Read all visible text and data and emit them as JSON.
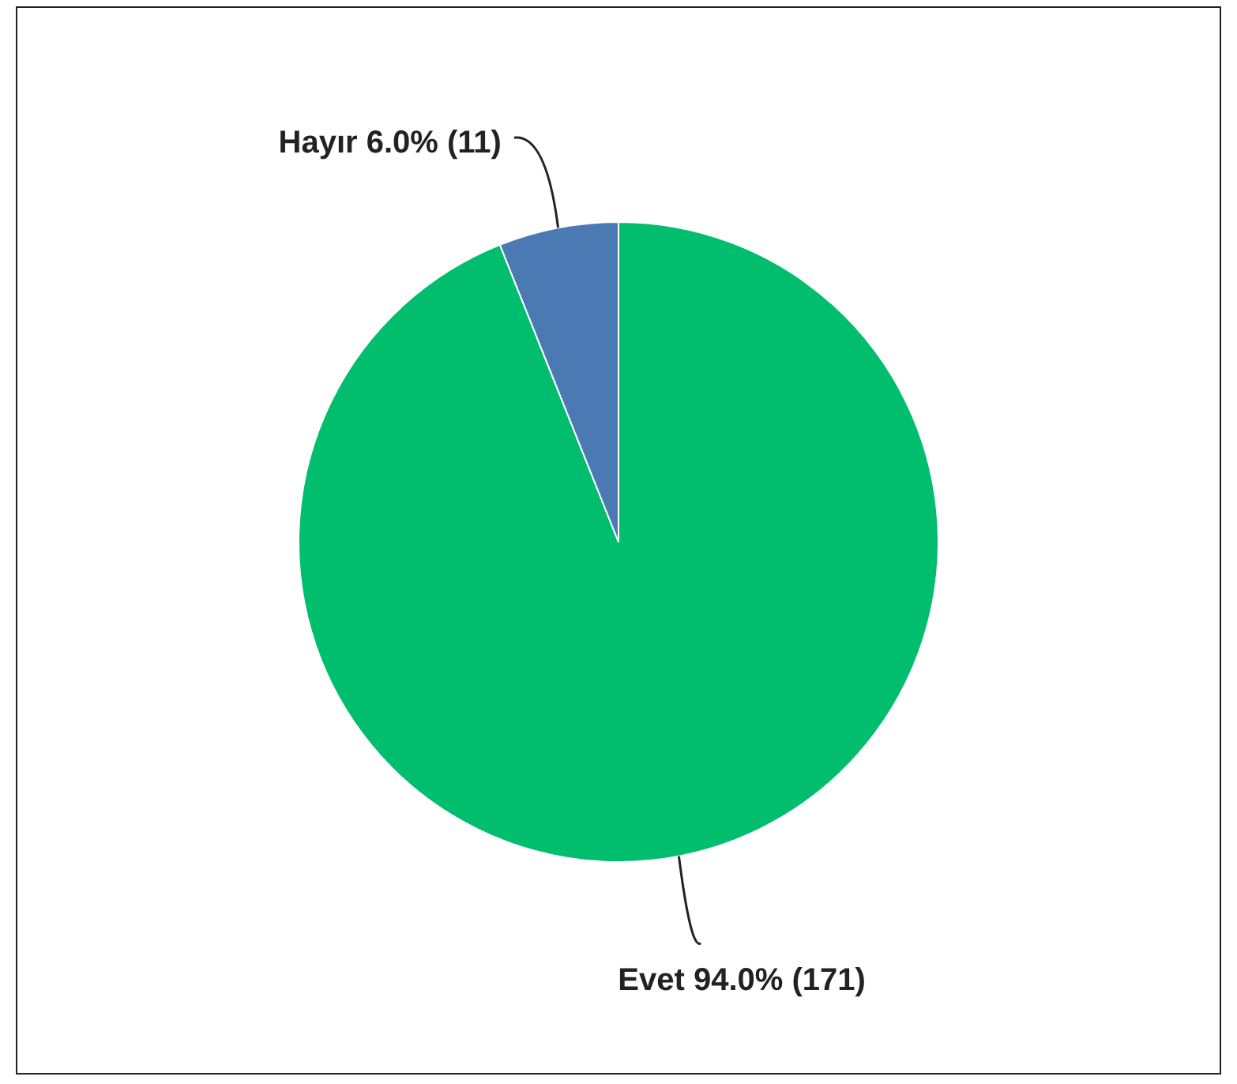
{
  "chart_data": {
    "type": "pie",
    "categories": [
      "Evet",
      "Hayır"
    ],
    "values": [
      171,
      11
    ],
    "colors": [
      "#00be6e",
      "#4a79b4"
    ],
    "value_labels": [
      "94.0% (171)",
      "6.0% (11)"
    ],
    "legend": false
  }
}
